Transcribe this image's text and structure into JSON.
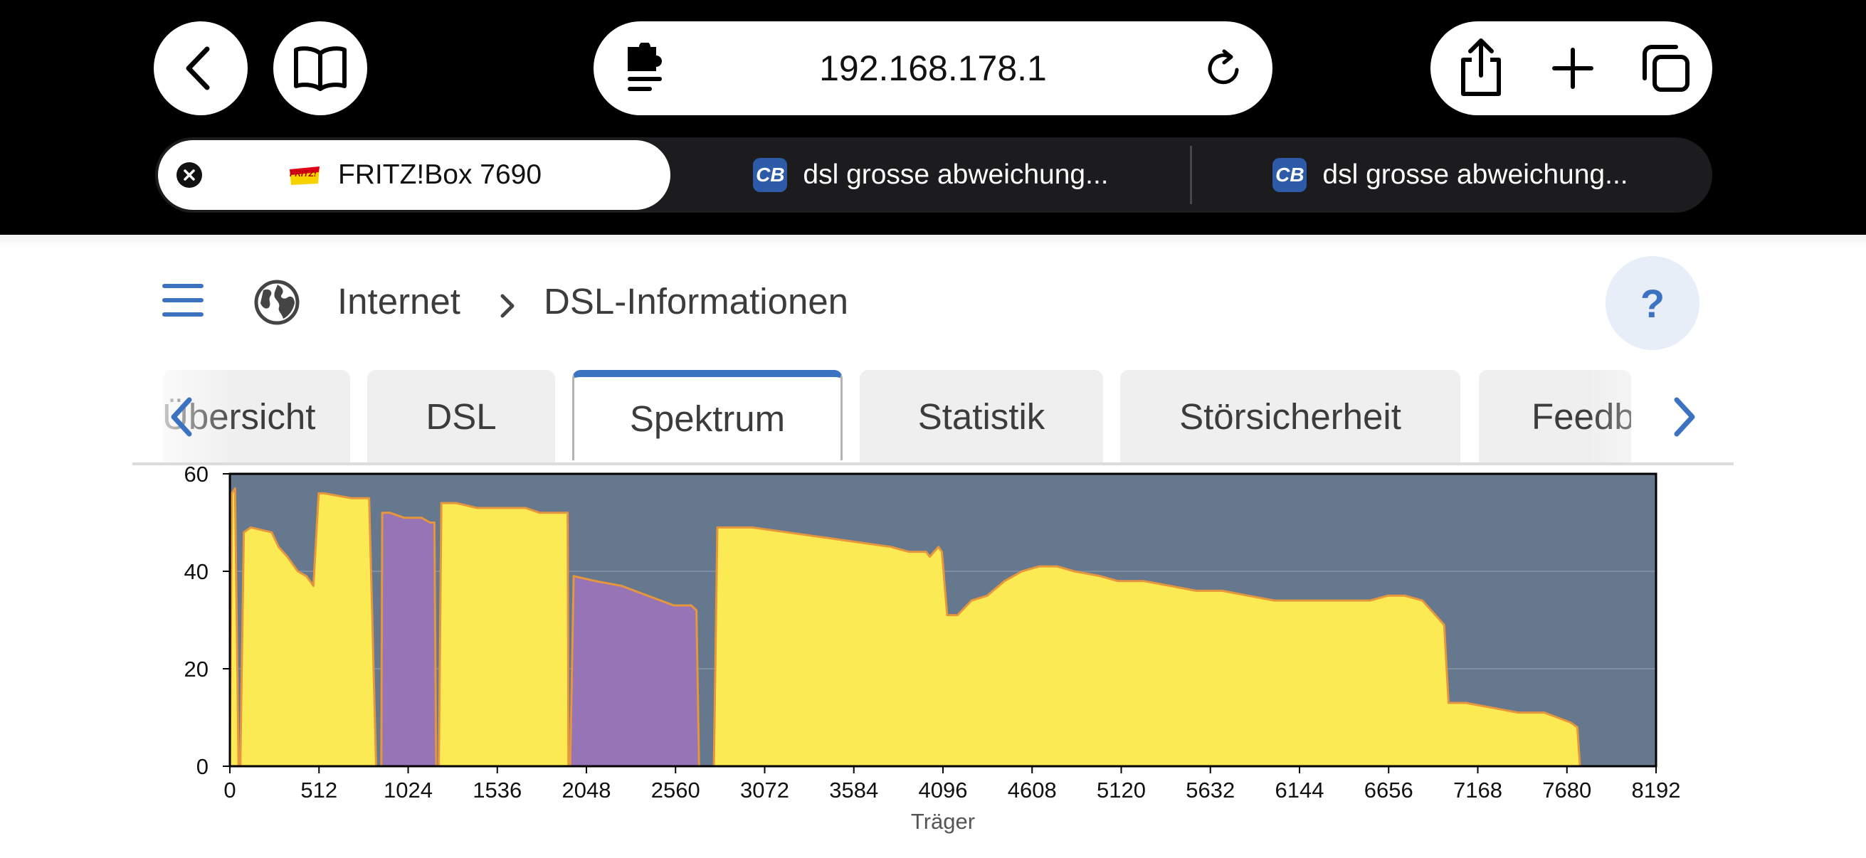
{
  "browser": {
    "url": "192.168.178.1",
    "tabs": [
      {
        "title": "FRITZ!Box 7690",
        "active": true
      },
      {
        "title": "dsl grosse abweichung...",
        "active": false
      },
      {
        "title": "dsl grosse abweichung...",
        "active": false
      }
    ],
    "favicon_cb_text": "CB",
    "favicon_fritz_text": "FRITZ!"
  },
  "header": {
    "breadcrumb_section": "Internet",
    "breadcrumb_current": "DSL-Informationen",
    "help_label": "?"
  },
  "page_tabs": [
    {
      "label": "Übersicht",
      "active": false
    },
    {
      "label": "DSL",
      "active": false
    },
    {
      "label": "Spektrum",
      "active": true
    },
    {
      "label": "Statistik",
      "active": false
    },
    {
      "label": "Störsicherheit",
      "active": false
    },
    {
      "label": "Feedback",
      "active": false
    }
  ],
  "colors": {
    "accent": "#3b73c0",
    "chart_bg": "#66788d",
    "downstream": "#fbea54",
    "upstream": "#9674b6",
    "line": "#e6963c"
  },
  "chart_data": {
    "type": "area",
    "title": "",
    "xlabel": "Träger",
    "ylabel": "",
    "xlim": [
      0,
      8192
    ],
    "ylim": [
      0,
      60
    ],
    "xticks": [
      "0",
      "512",
      "1024",
      "1536",
      "2048",
      "2560",
      "3072",
      "3584",
      "4096",
      "4608",
      "5120",
      "5632",
      "6144",
      "6656",
      "7168",
      "7680",
      "8192"
    ],
    "yticks": [
      "0",
      "20",
      "40",
      "60"
    ],
    "grid": true,
    "series": [
      {
        "name": "downstream",
        "segments": [
          [
            [
              0,
              0
            ],
            [
              12,
              56
            ],
            [
              30,
              57
            ],
            [
              50,
              0
            ]
          ],
          [
            [
              60,
              0
            ],
            [
              80,
              48
            ],
            [
              120,
              49
            ],
            [
              240,
              48
            ],
            [
              280,
              45
            ],
            [
              330,
              43
            ],
            [
              390,
              40
            ],
            [
              440,
              39
            ],
            [
              480,
              37
            ],
            [
              510,
              56
            ],
            [
              540,
              56
            ],
            [
              700,
              55
            ],
            [
              800,
              55
            ],
            [
              840,
              0
            ]
          ],
          [
            [
              1200,
              0
            ],
            [
              1215,
              54
            ],
            [
              1300,
              54
            ],
            [
              1420,
              53
            ],
            [
              1550,
              53
            ],
            [
              1700,
              53
            ],
            [
              1780,
              52
            ],
            [
              1940,
              52
            ],
            [
              1945,
              0
            ]
          ],
          [
            [
              2780,
              0
            ],
            [
              2800,
              49
            ],
            [
              3000,
              49
            ],
            [
              3200,
              48
            ],
            [
              3400,
              47
            ],
            [
              3600,
              46
            ],
            [
              3800,
              45
            ],
            [
              3900,
              44
            ],
            [
              4000,
              44
            ],
            [
              4020,
              43
            ],
            [
              4070,
              45
            ],
            [
              4090,
              44
            ],
            [
              4120,
              31
            ],
            [
              4180,
              31
            ],
            [
              4260,
              34
            ],
            [
              4350,
              35
            ],
            [
              4450,
              38
            ],
            [
              4550,
              40
            ],
            [
              4650,
              41
            ],
            [
              4750,
              41
            ],
            [
              4850,
              40
            ],
            [
              5000,
              39
            ],
            [
              5100,
              38
            ],
            [
              5250,
              38
            ],
            [
              5400,
              37
            ],
            [
              5550,
              36
            ],
            [
              5700,
              36
            ],
            [
              5850,
              35
            ],
            [
              6000,
              34
            ],
            [
              6150,
              34
            ],
            [
              6300,
              34
            ],
            [
              6450,
              34
            ],
            [
              6550,
              34
            ],
            [
              6650,
              35
            ],
            [
              6750,
              35
            ],
            [
              6850,
              34
            ],
            [
              6950,
              30
            ],
            [
              6975,
              29
            ],
            [
              7000,
              13
            ],
            [
              7100,
              13
            ],
            [
              7250,
              12
            ],
            [
              7400,
              11
            ],
            [
              7550,
              11
            ],
            [
              7700,
              9
            ],
            [
              7740,
              8
            ],
            [
              7755,
              0
            ]
          ]
        ]
      },
      {
        "name": "upstream",
        "segments": [
          [
            [
              870,
              0
            ],
            [
              875,
              52
            ],
            [
              920,
              52
            ],
            [
              1000,
              51
            ],
            [
              1100,
              51
            ],
            [
              1150,
              50
            ],
            [
              1175,
              50
            ],
            [
              1185,
              0
            ]
          ],
          [
            [
              1955,
              0
            ],
            [
              1975,
              39
            ],
            [
              2100,
              38
            ],
            [
              2250,
              37
            ],
            [
              2400,
              35
            ],
            [
              2550,
              33
            ],
            [
              2650,
              33
            ],
            [
              2680,
              32
            ],
            [
              2695,
              0
            ]
          ]
        ]
      }
    ]
  }
}
